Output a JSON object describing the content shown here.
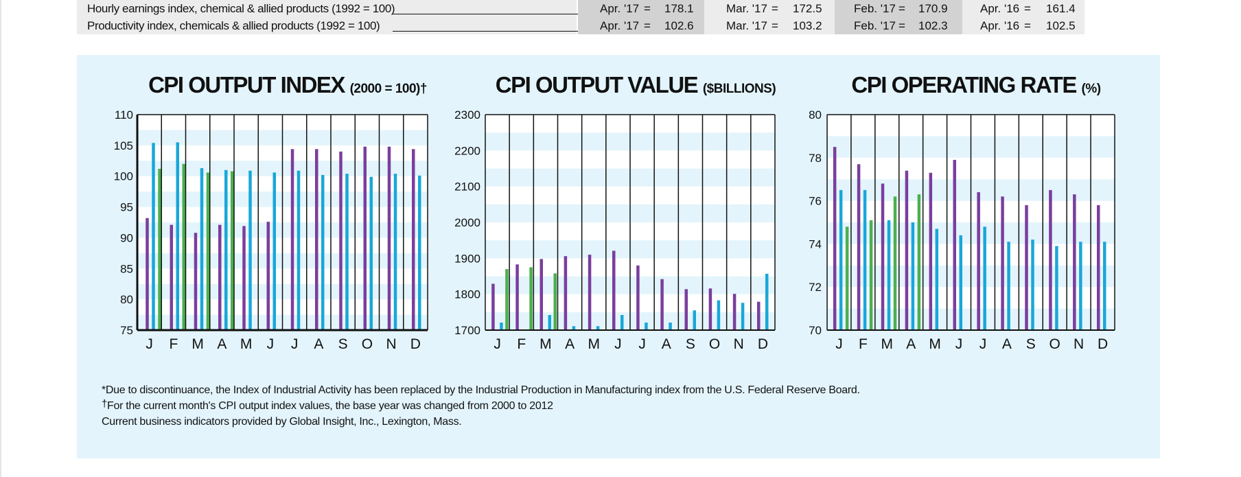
{
  "table": {
    "rows": [
      {
        "label": "Hourly earnings index, chemical & allied products (1992 = 100)",
        "cells": [
          {
            "period": "Apr. '17",
            "eq": "=",
            "value": "178.1"
          },
          {
            "period": "Mar. '17",
            "eq": "=",
            "value": "172.5"
          },
          {
            "period": "Feb. '17",
            "eq": "=",
            "value": "170.9"
          },
          {
            "period": "Apr. '16",
            "eq": "=",
            "value": "161.4"
          }
        ]
      },
      {
        "label": "Productivity index, chemicals & allied products (1992 = 100)",
        "cells": [
          {
            "period": "Apr. '17",
            "eq": "=",
            "value": "102.6"
          },
          {
            "period": "Mar. '17",
            "eq": "=",
            "value": "103.2"
          },
          {
            "period": "Feb. '17",
            "eq": "=",
            "value": "102.3"
          },
          {
            "period": "Apr. '16",
            "eq": "=",
            "value": "102.5"
          }
        ]
      }
    ]
  },
  "colors": {
    "purple": "#7a3e9d",
    "green": "#4caf50",
    "blue": "#19a7d9",
    "panel": "#e3f4fc",
    "band": "#ffffff"
  },
  "chart_data": [
    {
      "type": "bar",
      "title": "CPI OUTPUT INDEX",
      "title_suffix": "(2000 = 100)†",
      "categories": [
        "J",
        "F",
        "M",
        "A",
        "M",
        "J",
        "J",
        "A",
        "S",
        "O",
        "N",
        "D"
      ],
      "ylim": [
        75,
        110
      ],
      "yticks": [
        75,
        80,
        85,
        90,
        95,
        100,
        105,
        110
      ],
      "series": [
        {
          "color": "purple",
          "values": [
            93.2,
            92.1,
            90.8,
            92.1,
            91.9,
            92.6,
            104.4,
            104.4,
            104.0,
            104.8,
            104.8,
            104.4
          ]
        },
        {
          "color": "blue",
          "values": [
            105.4,
            105.5,
            101.3,
            101.0,
            100.9,
            100.6,
            100.9,
            100.2,
            100.4,
            99.9,
            100.4,
            100.1
          ]
        },
        {
          "color": "green",
          "values": [
            101.2,
            102.0,
            100.6,
            100.8,
            null,
            null,
            null,
            null,
            null,
            null,
            null,
            null
          ]
        }
      ]
    },
    {
      "type": "bar",
      "title": "CPI OUTPUT VALUE",
      "title_suffix": "($BILLIONS)",
      "categories": [
        "J",
        "F",
        "M",
        "A",
        "M",
        "J",
        "J",
        "A",
        "S",
        "O",
        "N",
        "D"
      ],
      "ylim": [
        1700,
        2300
      ],
      "yticks": [
        1700,
        1800,
        1900,
        2000,
        2100,
        2200,
        2300
      ],
      "series": [
        {
          "color": "purple",
          "values": [
            1829,
            1883,
            1898,
            1906,
            1910,
            1921,
            1880,
            1842,
            1814,
            1816,
            1801,
            1779
          ]
        },
        {
          "color": "blue",
          "values": [
            1721,
            1702,
            1742,
            1711,
            1711,
            1742,
            1721,
            1721,
            1755,
            1783,
            1776,
            1857
          ]
        },
        {
          "color": "green",
          "values": [
            1870,
            1875,
            1858,
            null,
            null,
            null,
            null,
            null,
            null,
            null,
            null,
            null
          ]
        }
      ]
    },
    {
      "type": "bar",
      "title": "CPI OPERATING RATE",
      "title_suffix": "(%)",
      "categories": [
        "J",
        "F",
        "M",
        "A",
        "M",
        "J",
        "J",
        "A",
        "S",
        "O",
        "N",
        "D"
      ],
      "ylim": [
        70,
        80
      ],
      "yticks": [
        70,
        72,
        74,
        76,
        78,
        80
      ],
      "series": [
        {
          "color": "purple",
          "values": [
            78.5,
            77.7,
            76.8,
            77.4,
            77.3,
            77.9,
            76.4,
            76.2,
            75.8,
            76.5,
            76.3,
            75.8
          ]
        },
        {
          "color": "blue",
          "values": [
            76.5,
            76.5,
            75.1,
            75.0,
            74.7,
            74.4,
            74.8,
            74.1,
            74.2,
            73.9,
            74.1,
            74.1
          ]
        },
        {
          "color": "green",
          "values": [
            74.8,
            75.1,
            76.2,
            76.3,
            null,
            null,
            null,
            null,
            null,
            null,
            null,
            null
          ]
        }
      ]
    }
  ],
  "notes": {
    "line1": "*Due to discontinuance, the Index of Industrial Activity has been replaced by the Industrial Production in Manufacturing index from the U.S. Federal Reserve Board.",
    "dagger": "†",
    "line2": "For the current month's CPI output index values, the base year was changed from 2000 to 2012",
    "line3": "Current business indicators provided by Global Insight, Inc., Lexington, Mass."
  }
}
